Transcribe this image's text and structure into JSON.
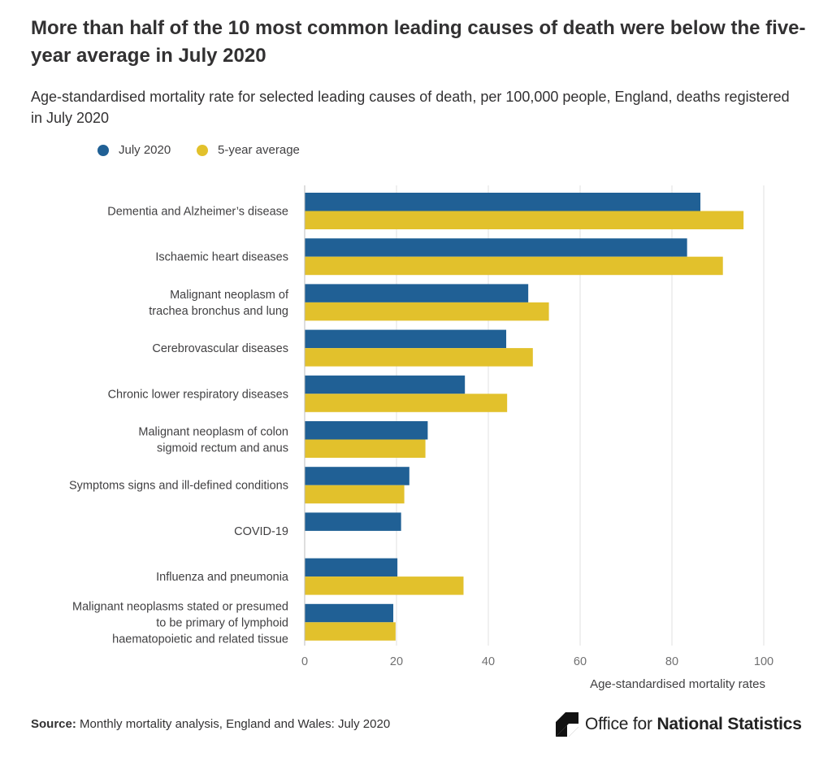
{
  "header": {
    "title": "More than half of the 10 most common leading causes of death were below the five-year average in July 2020",
    "subtitle": "Age-standardised mortality rate for selected leading causes of death, per 100,000 people, England, deaths registered in July 2020"
  },
  "footer": {
    "source_label": "Source:",
    "source_text": "Monthly mortality analysis, England and Wales: July 2020",
    "logo_text_prefix": "Office for",
    "logo_text_bold": "National Statistics"
  },
  "chart_data": {
    "type": "bar",
    "orientation": "horizontal",
    "categories": [
      "Dementia and Alzheimer’s disease",
      "Ischaemic heart diseases",
      "Malignant neoplasm of trachea bronchus and lung",
      "Cerebrovascular diseases",
      "Chronic lower respiratory diseases",
      "Malignant neoplasm of colon sigmoid rectum and anus",
      "Symptoms signs and ill-defined conditions",
      "COVID-19",
      "Influenza and pneumonia",
      "Malignant neoplasms stated or presumed to be primary of lymphoid haematopoietic and related tissue"
    ],
    "category_label_lines": [
      [
        "Dementia and Alzheimer’s disease"
      ],
      [
        "Ischaemic heart diseases"
      ],
      [
        "Malignant neoplasm of",
        "trachea bronchus and lung"
      ],
      [
        "Cerebrovascular diseases"
      ],
      [
        "Chronic lower respiratory diseases"
      ],
      [
        "Malignant neoplasm of colon",
        "sigmoid rectum and anus"
      ],
      [
        "Symptoms signs and ill-defined conditions"
      ],
      [
        "COVID-19"
      ],
      [
        "Influenza and pneumonia"
      ],
      [
        "Malignant neoplasms stated or presumed",
        "to be primary of lymphoid",
        "haematopoietic and related tissue"
      ]
    ],
    "series": [
      {
        "name": "July 2020",
        "color": "#206095",
        "values": [
          86.2,
          83.3,
          48.7,
          43.9,
          34.9,
          26.8,
          22.8,
          21.0,
          20.2,
          19.3
        ]
      },
      {
        "name": "5-year average",
        "color": "#e2c12c",
        "values": [
          95.6,
          91.1,
          53.2,
          49.7,
          44.1,
          26.3,
          21.7,
          null,
          34.6,
          19.8
        ]
      }
    ],
    "xlabel": "Age-standardised mortality rates",
    "ylabel": "",
    "xlim": [
      0,
      100
    ],
    "xticks": [
      0,
      20,
      40,
      60,
      80,
      100
    ],
    "grid": true,
    "legend_position": "top-left"
  }
}
